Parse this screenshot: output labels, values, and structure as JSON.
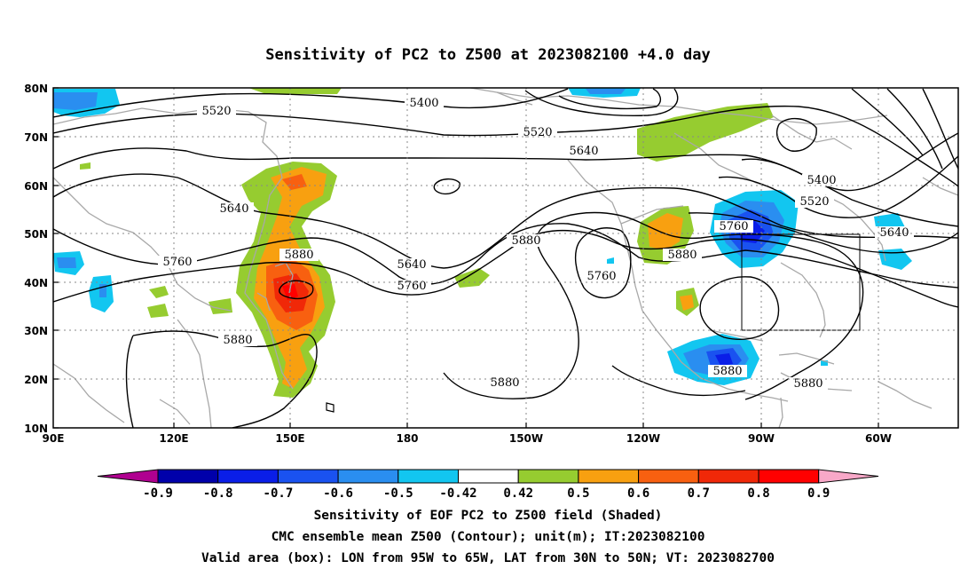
{
  "map": {
    "title": "Sensitivity of PC2 to Z500 at 2023082100 +4.0 day",
    "lat_labels": [
      "80N",
      "70N",
      "60N",
      "50N",
      "40N",
      "30N",
      "20N",
      "10N"
    ],
    "lon_labels": [
      "90E",
      "120E",
      "150E",
      "180",
      "150W",
      "120W",
      "90W",
      "60W"
    ],
    "contour_labels": [
      "5520",
      "5400",
      "5520",
      "5640",
      "5640",
      "5880",
      "5760",
      "5880",
      "5640",
      "5760",
      "5400",
      "5520",
      "5760",
      "5640",
      "5880",
      "5760",
      "5880",
      "5880",
      "5880"
    ],
    "colorbar": {
      "labels": [
        "-0.9",
        "-0.8",
        "-0.7",
        "-0.6",
        "-0.5",
        "-0.42",
        "0.42",
        "0.5",
        "0.6",
        "0.7",
        "0.8",
        "0.9"
      ],
      "colors": [
        "#b00090",
        "#0000aa",
        "#0a1ee8",
        "#1a52f0",
        "#2a8ef0",
        "#12c6f0",
        "#ffffff",
        "#96cc30",
        "#f8a010",
        "#f86010",
        "#f02808",
        "#ff0000",
        "#f8a8c8"
      ]
    },
    "valid_box": {
      "lon_from": "95W",
      "lon_to": "65W",
      "lat_from": "30N",
      "lat_to": "50N"
    },
    "captions": [
      "Sensitivity of EOF PC2 to Z500 field (Shaded)",
      "CMC ensemble mean Z500 (Contour); unit(m); IT:2023082100",
      "Valid area (box): LON from 95W to 65W, LAT from 30N to 50N; VT: 2023082700"
    ]
  }
}
